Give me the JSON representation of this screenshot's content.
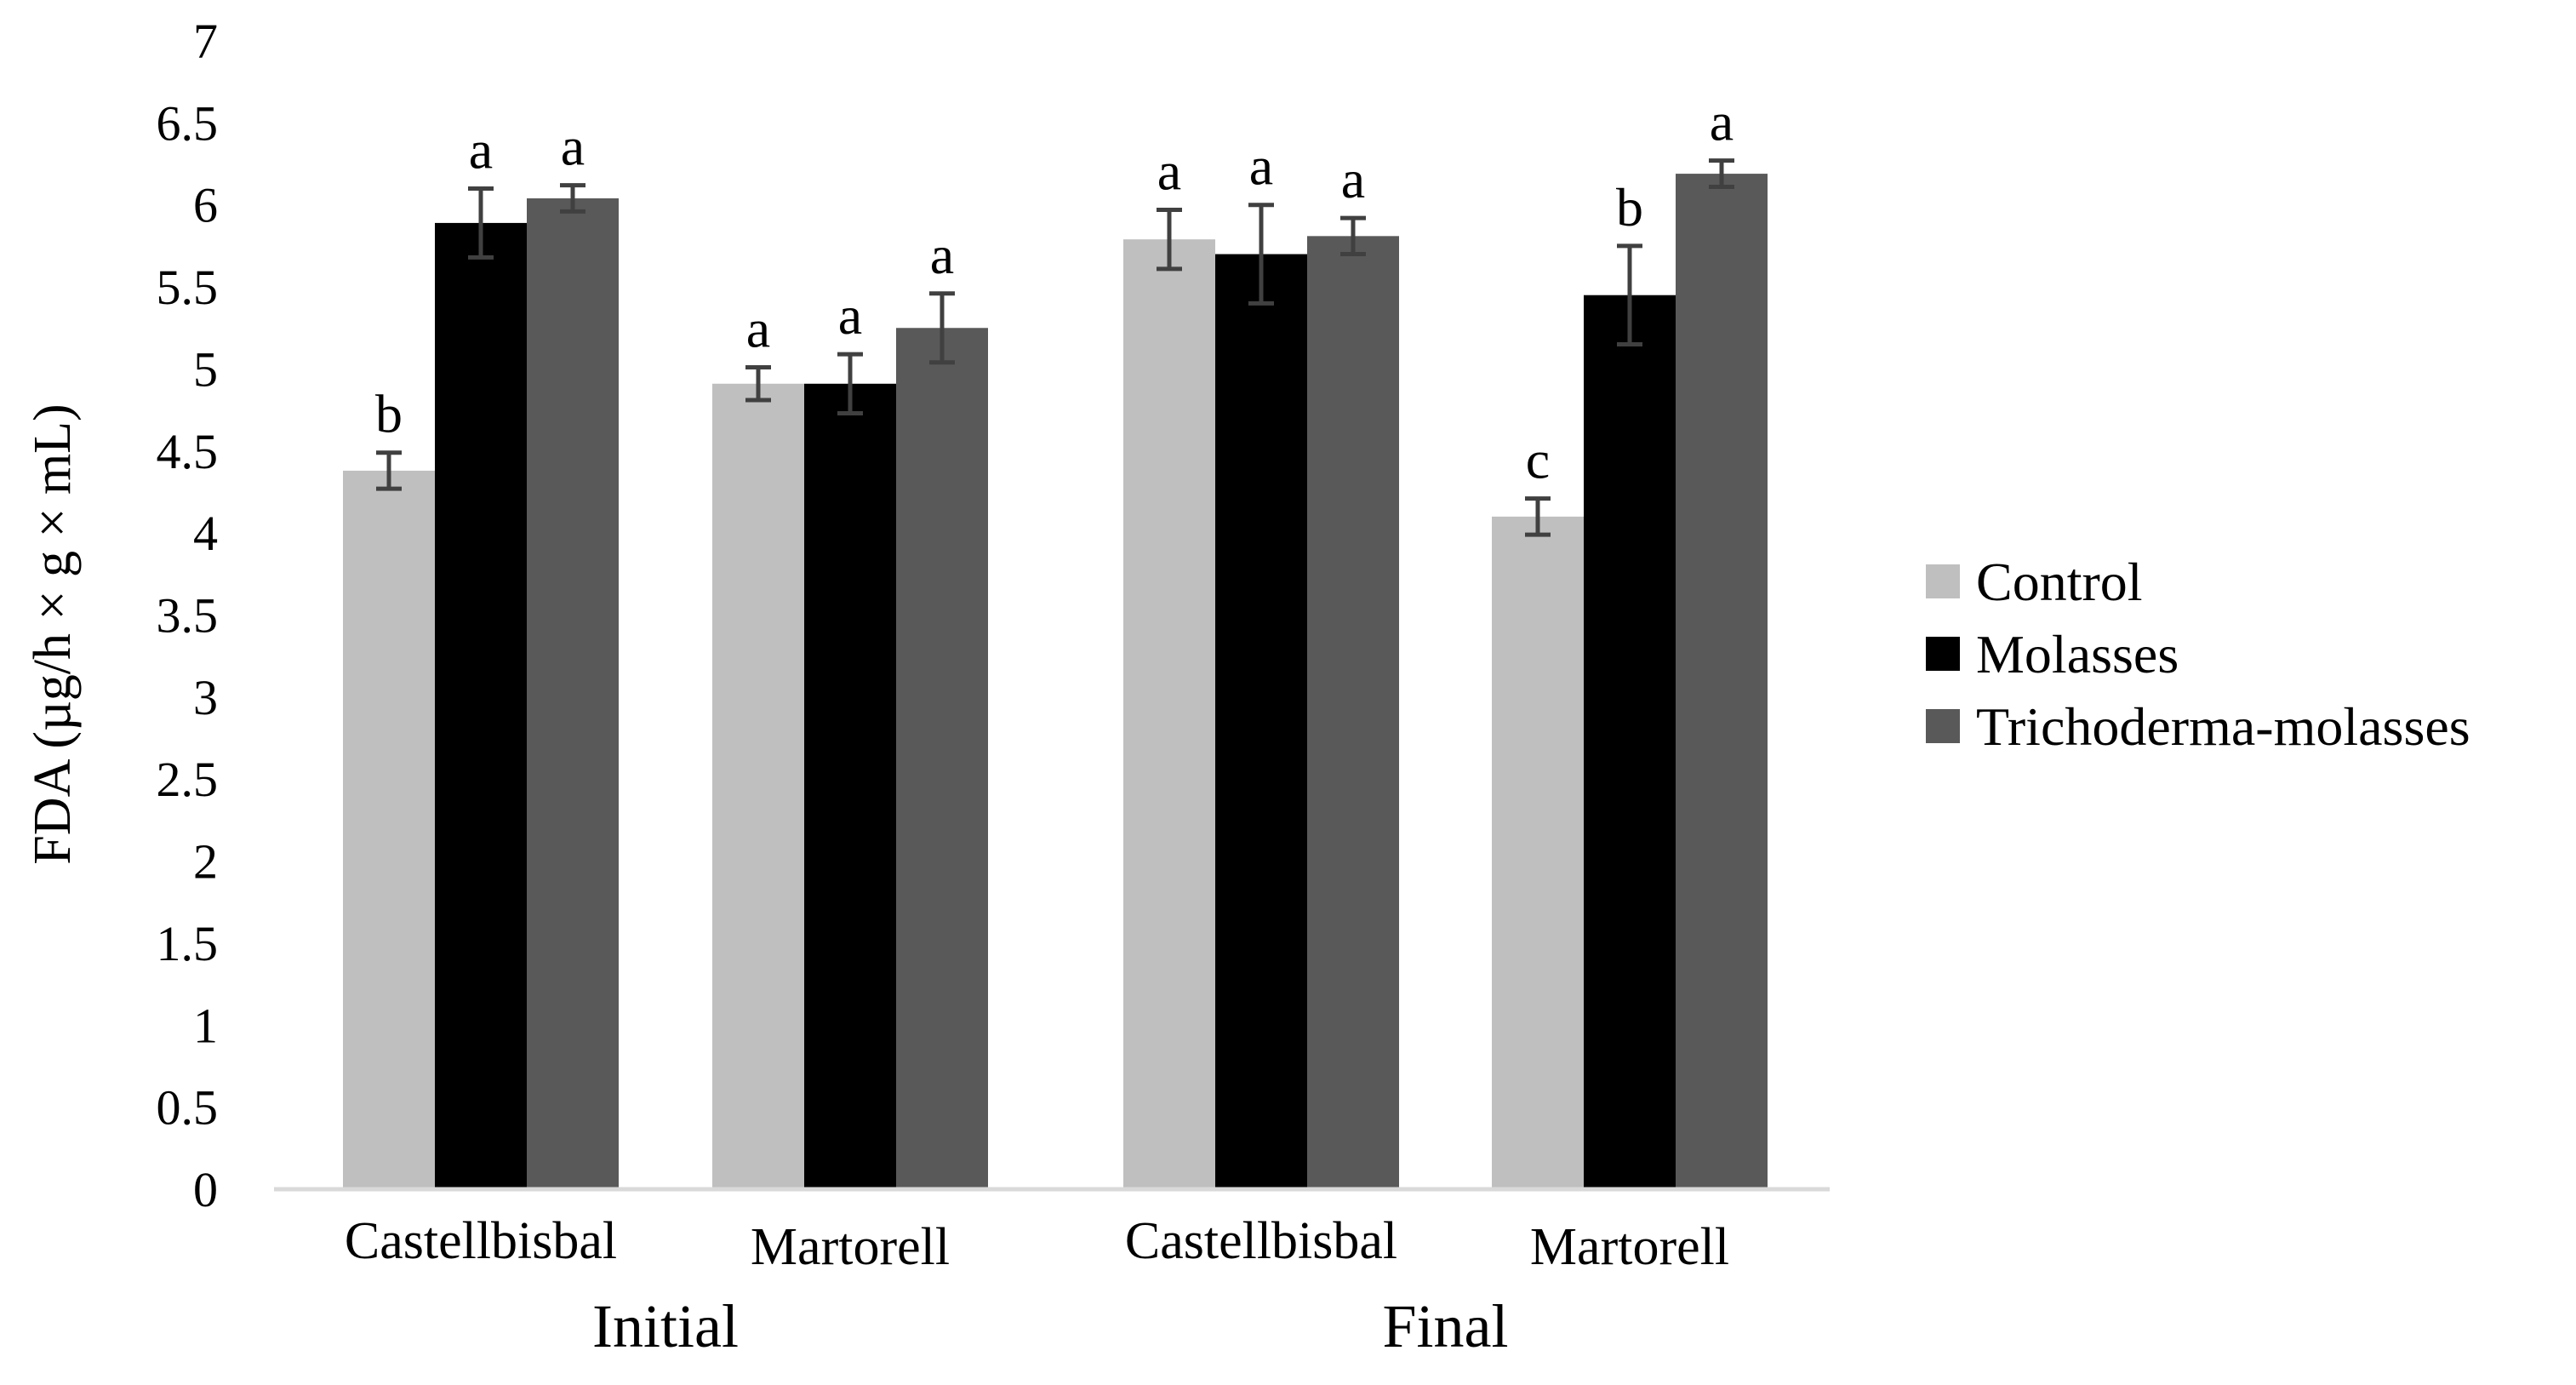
{
  "chart_data": {
    "type": "bar",
    "title": "",
    "ylabel": "FDA (µg/h × g × mL)",
    "xlabel": "",
    "ylim": [
      0,
      7
    ],
    "ytick_step": 0.5,
    "ytick_labels": [
      "0",
      "0.5",
      "1",
      "1.5",
      "2",
      "2.5",
      "3",
      "3.5",
      "4",
      "4.5",
      "5",
      "5.5",
      "6",
      "6.5",
      "7"
    ],
    "grid": false,
    "legend_position": "right",
    "groups": [
      {
        "label": "Initial",
        "categories": [
          "Castellbisbal",
          "Martorell"
        ]
      },
      {
        "label": "Final",
        "categories": [
          "Castellbisbal",
          "Martorell"
        ]
      }
    ],
    "categories": [
      "Castellbisbal",
      "Martorell",
      "Castellbisbal",
      "Martorell"
    ],
    "series": [
      {
        "name": "Control",
        "color": "#bfbfbf",
        "values": [
          4.38,
          4.91,
          5.79,
          4.1
        ],
        "errors": [
          0.11,
          0.1,
          0.18,
          0.11
        ],
        "labels": [
          "b",
          "a",
          "a",
          "c"
        ]
      },
      {
        "name": "Molasses",
        "color": "#000000",
        "values": [
          5.89,
          4.91,
          5.7,
          5.45
        ],
        "errors": [
          0.21,
          0.18,
          0.3,
          0.3
        ],
        "labels": [
          "a",
          "a",
          "a",
          "b"
        ]
      },
      {
        "name": "Trichoderma-molasses",
        "color": "#595959",
        "values": [
          6.04,
          5.25,
          5.81,
          6.19
        ],
        "errors": [
          0.08,
          0.21,
          0.11,
          0.08
        ],
        "labels": [
          "a",
          "a",
          "a",
          "a"
        ]
      }
    ]
  }
}
